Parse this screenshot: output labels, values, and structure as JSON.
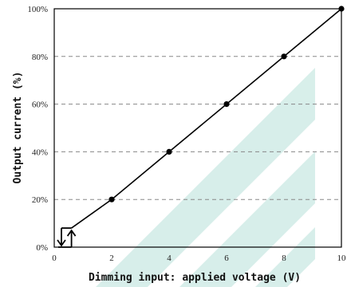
{
  "chart_data": {
    "type": "line",
    "xlabel": "Dimming input: applied voltage (V)",
    "ylabel": "Output current (%)",
    "xlim": [
      0,
      10
    ],
    "ylim": [
      0,
      100
    ],
    "x_ticks": [
      "0",
      "2",
      "4",
      "6",
      "8",
      "10"
    ],
    "y_ticks": [
      "0%",
      "20%",
      "40%",
      "60%",
      "80%",
      "100%"
    ],
    "grid": "horizontal dashed",
    "series": [
      {
        "x": [
          0.6,
          2,
          4,
          6,
          8,
          10
        ],
        "y": [
          8,
          20,
          40,
          60,
          80,
          100
        ]
      }
    ],
    "markers_x": [
      2,
      4,
      6,
      8,
      10
    ],
    "hysteresis_box": {
      "x": [
        0.25,
        0.6
      ],
      "y": [
        0,
        8
      ]
    },
    "colors": {
      "line": "#000000",
      "grid": "#888888",
      "watermark": "#5fb8a8"
    }
  }
}
